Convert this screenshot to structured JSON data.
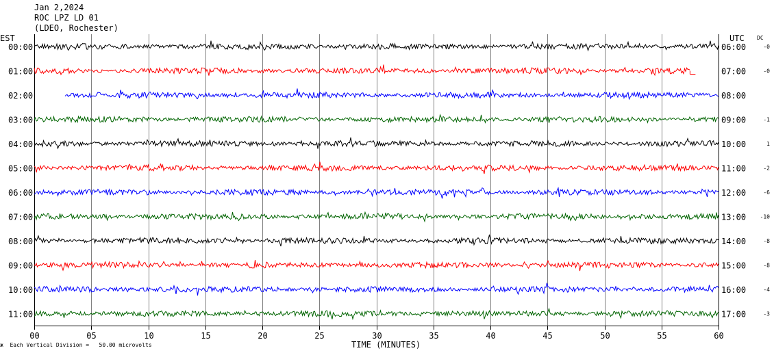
{
  "header": {
    "date": "Jan 2,2024",
    "station": "ROC LPZ LD 01",
    "network": "(LDEO, Rochester)"
  },
  "left_axis_title": "EST",
  "right_axis_title": "UTC",
  "dc_title": "DC",
  "footnote": {
    "logo_text": "ж",
    "text": "Each Vertical Division =   50.00 microvolts"
  },
  "colors": {
    "black": "#000000",
    "red": "#ff0000",
    "blue": "#0000ff",
    "green": "#006400",
    "grid": "#808080"
  },
  "chart_data": {
    "type": "line",
    "title": "",
    "xlabel": "TIME (MINUTES)",
    "ylabel": "",
    "xlim": [
      0,
      60
    ],
    "x_ticks": [
      "00",
      "05",
      "10",
      "15",
      "20",
      "25",
      "30",
      "35",
      "40",
      "45",
      "50",
      "55",
      "60"
    ],
    "grid": true,
    "series": [
      {
        "est": "00:00",
        "utc": "06:00",
        "dc": "-0",
        "color": "black",
        "x_start": 0,
        "x_end": 60
      },
      {
        "est": "01:00",
        "utc": "07:00",
        "dc": "-0",
        "color": "red",
        "x_start": 0,
        "x_end": 57.5
      },
      {
        "est": "02:00",
        "utc": "08:00",
        "dc": "",
        "color": "blue",
        "x_start": 2.7,
        "x_end": 60
      },
      {
        "est": "03:00",
        "utc": "09:00",
        "dc": "-1",
        "color": "green",
        "x_start": 0,
        "x_end": 60
      },
      {
        "est": "04:00",
        "utc": "10:00",
        "dc": "1",
        "color": "black",
        "x_start": 0,
        "x_end": 60
      },
      {
        "est": "05:00",
        "utc": "11:00",
        "dc": "-2",
        "color": "red",
        "x_start": 0,
        "x_end": 60
      },
      {
        "est": "06:00",
        "utc": "12:00",
        "dc": "-6",
        "color": "blue",
        "x_start": 0,
        "x_end": 60
      },
      {
        "est": "07:00",
        "utc": "13:00",
        "dc": "-10",
        "color": "green",
        "x_start": 0,
        "x_end": 60
      },
      {
        "est": "08:00",
        "utc": "14:00",
        "dc": "-8",
        "color": "black",
        "x_start": 0,
        "x_end": 60
      },
      {
        "est": "09:00",
        "utc": "15:00",
        "dc": "-8",
        "color": "red",
        "x_start": 0,
        "x_end": 60
      },
      {
        "est": "10:00",
        "utc": "16:00",
        "dc": "-4",
        "color": "blue",
        "x_start": 0,
        "x_end": 60
      },
      {
        "est": "11:00",
        "utc": "17:00",
        "dc": "-3",
        "color": "green",
        "x_start": 0,
        "x_end": 60
      }
    ]
  }
}
